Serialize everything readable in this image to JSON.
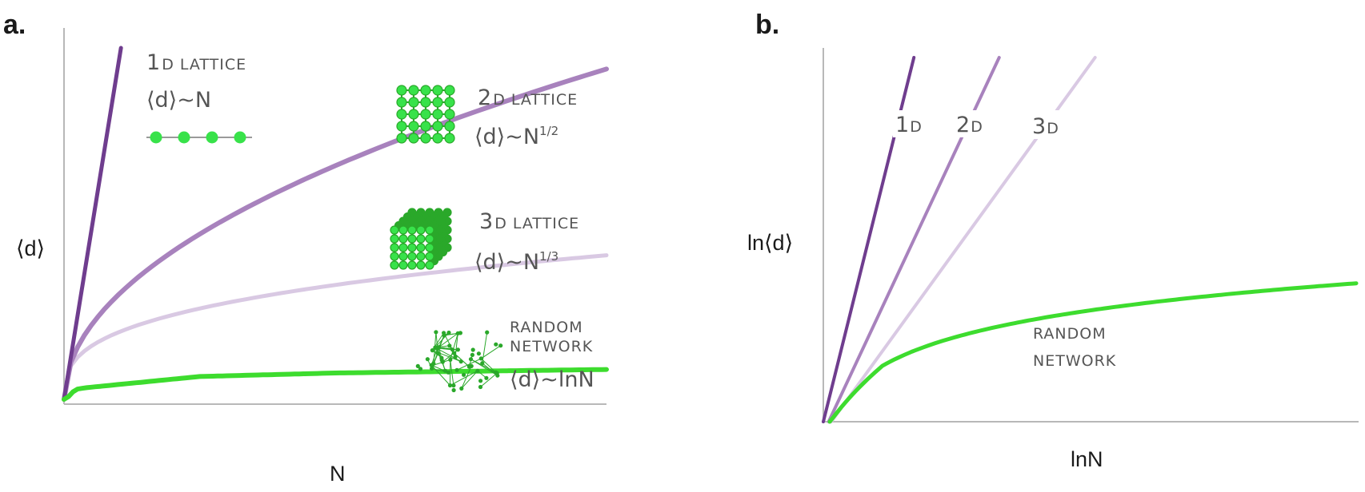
{
  "colors": {
    "d1": "#6f3d8e",
    "d2": "#a882bd",
    "d3": "#d9c9e3",
    "random": "#3ddc2e",
    "node": "#38e24a",
    "node_dark": "#2aa82a",
    "axis": "#b8b8b8"
  },
  "panel_a": {
    "letter": "a.",
    "xlabel": "N",
    "ylabel": "⟨d⟩",
    "labels": {
      "l1_num": "1",
      "l1_rest": "D LATTICE",
      "l1_formula": "⟨d⟩~N",
      "l2_num": "2",
      "l2_rest": "D LATTICE",
      "l2_formula": "⟨d⟩~N",
      "l2_exp": "1/2",
      "l3_num": "3",
      "l3_rest": "D LATTICE",
      "l3_formula": "⟨d⟩~N",
      "l3_exp": "1/3",
      "rand_1": "RANDOM",
      "rand_2": "NETWORK",
      "rand_formula": "⟨d⟩~lnN"
    }
  },
  "panel_b": {
    "letter": "b.",
    "xlabel": "lnN",
    "ylabel": "ln⟨d⟩",
    "labels": {
      "b1_num": "1",
      "b1_rest": "D",
      "b2_num": "2",
      "b2_rest": "D",
      "b3_num": "3",
      "b3_rest": "D",
      "rand_1": "RANDOM",
      "rand_2": "NETWORK"
    }
  },
  "chart_data": [
    {
      "type": "line",
      "title": "",
      "xlabel": "N",
      "ylabel": "⟨d⟩",
      "series": [
        {
          "name": "1D LATTICE",
          "relation": "⟨d⟩~N",
          "exponent": 1,
          "points": [
            [
              0,
              0
            ],
            [
              0.105,
              1
            ]
          ]
        },
        {
          "name": "2D LATTICE",
          "relation": "⟨d⟩~N^1/2",
          "exponent": 0.5,
          "points": [
            [
              0,
              0
            ],
            [
              0.25,
              0.47
            ],
            [
              0.5,
              0.67
            ],
            [
              0.75,
              0.82
            ],
            [
              1,
              0.94
            ]
          ]
        },
        {
          "name": "3D LATTICE",
          "relation": "⟨d⟩~N^1/3",
          "exponent": 0.333,
          "points": [
            [
              0,
              0
            ],
            [
              0.25,
              0.26
            ],
            [
              0.5,
              0.33
            ],
            [
              0.75,
              0.37
            ],
            [
              1,
              0.41
            ]
          ]
        },
        {
          "name": "RANDOM NETWORK",
          "relation": "⟨d⟩~lnN",
          "function": "log",
          "points": [
            [
              0,
              0
            ],
            [
              0.02,
              0.03
            ],
            [
              0.25,
              0.065
            ],
            [
              0.5,
              0.075
            ],
            [
              1,
              0.085
            ]
          ]
        }
      ]
    },
    {
      "type": "line",
      "title": "",
      "xlabel": "lnN",
      "ylabel": "ln⟨d⟩",
      "series": [
        {
          "name": "1D",
          "slope": 1,
          "points": [
            [
              0,
              0
            ],
            [
              0.17,
              1
            ]
          ]
        },
        {
          "name": "2D",
          "slope": 0.5,
          "points": [
            [
              0,
              0
            ],
            [
              0.33,
              1
            ]
          ]
        },
        {
          "name": "3D",
          "slope": 0.333,
          "points": [
            [
              0,
              0
            ],
            [
              0.51,
              1
            ]
          ]
        },
        {
          "name": "RANDOM NETWORK",
          "function": "ln(lnN)",
          "points": [
            [
              0,
              0
            ],
            [
              0.1,
              0.21
            ],
            [
              0.4,
              0.32
            ],
            [
              0.7,
              0.37
            ],
            [
              1,
              0.38
            ]
          ]
        }
      ]
    }
  ]
}
